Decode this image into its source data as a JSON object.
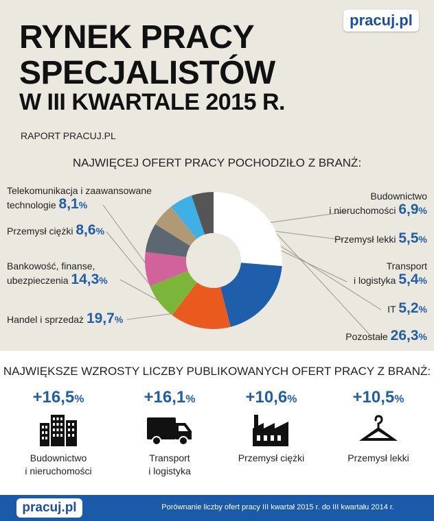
{
  "header": {
    "logo": "pracuj.pl",
    "title_line1": "RYNEK PRACY",
    "title_line2": "SPECJALISTÓW",
    "title_line3": "W III KWARTALE 2015 R.",
    "subtitle": "RAPORT PRACUJ.PL"
  },
  "chart_data": {
    "type": "pie",
    "title": "NAJWIĘCEJ OFERT PRACY POCHODZIŁO Z BRANŻ:",
    "slices": [
      {
        "label": "Pozostałe",
        "value": 26.3,
        "value_text": "26,3",
        "color": "#ffffff"
      },
      {
        "label": "Handel i sprzedaż",
        "value": 19.7,
        "value_text": "19,7",
        "color": "#1f5eab"
      },
      {
        "label": "Bankowość, finanse, ubezpieczenia",
        "value": 14.3,
        "value_text": "14,3",
        "color": "#ea5a1e"
      },
      {
        "label": "Przemysł ciężki",
        "value": 8.6,
        "value_text": "8,6",
        "color": "#7bb53a"
      },
      {
        "label": "Telekomunikacja  i zaawansowane technologie",
        "value": 8.1,
        "value_text": "8,1",
        "color": "#d2629b"
      },
      {
        "label": "Budownictwo i nieruchomości",
        "value": 6.9,
        "value_text": "6,9",
        "color": "#5d6772"
      },
      {
        "label": "Przemysł lekki",
        "value": 5.5,
        "value_text": "5,5",
        "color": "#b09a76"
      },
      {
        "label": "Transport i logistyka",
        "value": 5.4,
        "value_text": "5,4",
        "color": "#3fb0e6"
      },
      {
        "label": "IT",
        "value": 5.2,
        "value_text": "5,2",
        "color": "#555555"
      }
    ]
  },
  "labels": {
    "telekom_1": "Telekomunikacja  i zaawansowane",
    "telekom_2": "technologie",
    "przemysl_ciezki": "Przemysł ciężki",
    "bankowosc_1": "Bankowość, finanse,",
    "bankowosc_2": "ubezpieczenia",
    "handel": "Handel i sprzedaż",
    "budownictwo_1": "Budownictwo",
    "budownictwo_2": "i nieruchomości",
    "przemysl_lekki": "Przemysł lekki",
    "transport_1": "Transport",
    "transport_2": "i logistyka",
    "it": "IT",
    "pozostale": "Pozostałe",
    "percent_sign": "%"
  },
  "growth": {
    "title": "NAJWIĘKSZE WZROSTY LICZBY  PUBLIKOWANYCH OFERT PRACY Z BRANŻ:",
    "items": [
      {
        "value": "+16,5",
        "label_1": "Budownictwo",
        "label_2": "i nieruchomości",
        "icon": "buildings-icon"
      },
      {
        "value": "+16,1",
        "label_1": "Transport",
        "label_2": "i logistyka",
        "icon": "truck-icon"
      },
      {
        "value": "+10,6",
        "label_1": "Przemysł ciężki",
        "label_2": "",
        "icon": "factory-icon"
      },
      {
        "value": "+10,5",
        "label_1": "Przemysł lekki",
        "label_2": "",
        "icon": "hanger-icon"
      }
    ]
  },
  "footer": {
    "logo": "pracuj.pl",
    "note": "Porównanie liczby ofert pracy III kwartał 2015 r. do III kwartału 2014 r."
  }
}
